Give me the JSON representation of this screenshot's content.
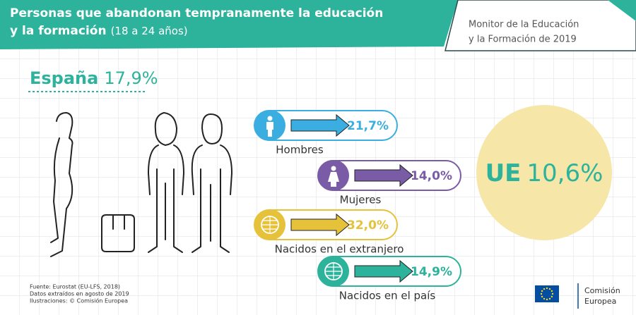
{
  "header": {
    "title_line1": "Personas que abandonan tempranamente la educación",
    "title_line2": "y la formación",
    "subtitle": "(18 a 24 años)",
    "publication_line1": "Monitor de la Educación",
    "publication_line2": "y la Formación de 2019"
  },
  "spain": {
    "label": "España",
    "value": "17,9%"
  },
  "items": [
    {
      "label": "Hombres",
      "value": "21,7%",
      "color": "#3aaee0"
    },
    {
      "label": "Mujeres",
      "value": "14,0%",
      "color": "#7a5ba6"
    },
    {
      "label": "Nacidos en el extranjero",
      "value": "32,0%",
      "color": "#e6c23a"
    },
    {
      "label": "Nacidos en el país",
      "value": "14,9%",
      "color": "#2db39c"
    }
  ],
  "eu": {
    "label": "UE",
    "value": "10,6%"
  },
  "footer": {
    "source": "Fuente: Eurostat (EU-LFS, 2018)",
    "extracted": "Datos extraídos en agosto de 2019",
    "illustrations": "Ilustraciones: © Comisión Europea"
  },
  "logo": {
    "line1": "Comisión",
    "line2": "Europea"
  }
}
